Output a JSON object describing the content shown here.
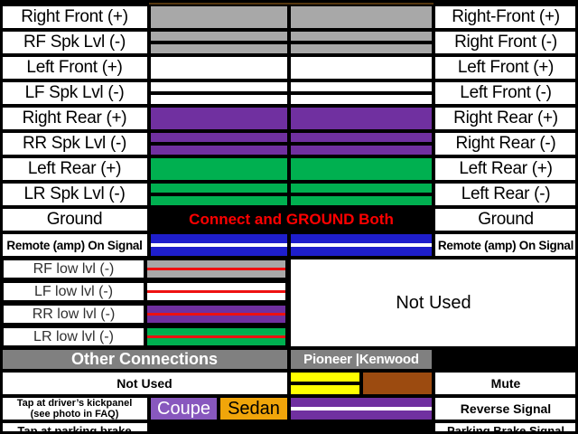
{
  "colors": {
    "wire_gray": "#A8A8A8",
    "header_gray": "#808080",
    "purple": "#7030A0",
    "green": "#00B050",
    "blue": "#1E1ECC",
    "yellow": "#FFFF00",
    "brown": "#9C4B10",
    "top_edge_brown": "#54360F",
    "light_green": "#92D050",
    "stripe_red": "#EE1111",
    "bottom_red": "#EE0000",
    "coupe_purple": "#8858BE",
    "sedan_orange": "#F0A50A",
    "ground_text_red": "#FF0000",
    "white": "#FFFFFF",
    "black": "#000000"
  },
  "wires": {
    "top_brown_sliver": [
      {
        "color": "#54360F",
        "weight": 1
      }
    ],
    "gray": [
      {
        "color": "#A8A8A8",
        "weight": 1
      }
    ],
    "gray_black": [
      {
        "color": "#A8A8A8",
        "weight": 2
      },
      {
        "color": "#000000",
        "weight": 1
      },
      {
        "color": "#A8A8A8",
        "weight": 2
      }
    ],
    "white": [
      {
        "color": "#FFFFFF",
        "weight": 1
      }
    ],
    "white_black": [
      {
        "color": "#FFFFFF",
        "weight": 2
      },
      {
        "color": "#000000",
        "weight": 1
      },
      {
        "color": "#FFFFFF",
        "weight": 2
      }
    ],
    "purple": [
      {
        "color": "#7030A0",
        "weight": 1
      }
    ],
    "purple_black": [
      {
        "color": "#7030A0",
        "weight": 2
      },
      {
        "color": "#000000",
        "weight": 1
      },
      {
        "color": "#7030A0",
        "weight": 2
      }
    ],
    "green": [
      {
        "color": "#00B050",
        "weight": 1
      }
    ],
    "green_black": [
      {
        "color": "#00B050",
        "weight": 2
      },
      {
        "color": "#000000",
        "weight": 1
      },
      {
        "color": "#00B050",
        "weight": 2
      }
    ],
    "blue_white": [
      {
        "color": "#1E1ECC",
        "weight": 2
      },
      {
        "color": "#FFFFFF",
        "weight": 1
      },
      {
        "color": "#1E1ECC",
        "weight": 2
      }
    ],
    "gray_red": [
      {
        "color": "#A8A8A8",
        "weight": 3
      },
      {
        "color": "#EE1111",
        "weight": 1
      },
      {
        "color": "#A8A8A8",
        "weight": 3
      }
    ],
    "white_red": [
      {
        "color": "#FFFFFF",
        "weight": 3
      },
      {
        "color": "#EE1111",
        "weight": 1
      },
      {
        "color": "#FFFFFF",
        "weight": 3
      }
    ],
    "purple_red": [
      {
        "color": "#7030A0",
        "weight": 3
      },
      {
        "color": "#EE1111",
        "weight": 1
      },
      {
        "color": "#7030A0",
        "weight": 3
      }
    ],
    "green_red": [
      {
        "color": "#00B050",
        "weight": 3
      },
      {
        "color": "#EE1111",
        "weight": 1
      },
      {
        "color": "#00B050",
        "weight": 3
      }
    ],
    "yellow_black": [
      {
        "color": "#FFFF00",
        "weight": 2
      },
      {
        "color": "#000000",
        "weight": 1
      },
      {
        "color": "#FFFF00",
        "weight": 2
      }
    ],
    "brown": [
      {
        "color": "#9C4B10",
        "weight": 1
      }
    ],
    "purple_white": [
      {
        "color": "#7030A0",
        "weight": 2
      },
      {
        "color": "#FFFFFF",
        "weight": 1
      },
      {
        "color": "#7030A0",
        "weight": 2
      }
    ],
    "light_green": [
      {
        "color": "#92D050",
        "weight": 1
      }
    ],
    "purple_over_red": [
      {
        "color": "#7030A0",
        "weight": 1
      },
      {
        "color": "#EE0000",
        "weight": 1
      }
    ]
  },
  "rows": [
    {
      "left": "Right Front (+)",
      "right": "Right-Front (+)"
    },
    {
      "left": "RF Spk Lvl (-)",
      "right": "Right Front (-)"
    },
    {
      "left": "Left Front (+)",
      "right": "Left Front (+)"
    },
    {
      "left": "LF Spk Lvl (-)",
      "right": "Left Front (-)"
    },
    {
      "left": "Right Rear (+)",
      "right": "Right Rear (+)"
    },
    {
      "left": "RR Spk Lvl (-)",
      "right": "Right Rear (-)"
    },
    {
      "left": "Left Rear (+)",
      "right": "Left Rear (+)"
    },
    {
      "left": "LR Spk Lvl (-)",
      "right": "Left Rear (-)"
    },
    {
      "left": "Ground",
      "right": "Ground",
      "note": "Connect and GROUND Both"
    },
    {
      "left": "Remote (amp) On Signal",
      "right": "Remote (amp) On Signal"
    }
  ],
  "low_rows": [
    {
      "left": "RF low lvl (-)"
    },
    {
      "left": "LF low lvl (-)"
    },
    {
      "left": "RR low lvl (-)"
    },
    {
      "left": "LR low lvl (-)"
    }
  ],
  "not_used_big": "Not Used",
  "header": {
    "left": "Other Connections",
    "middle": "Pioneer |Kenwood"
  },
  "mute_row": {
    "left": "Not Used",
    "right": "Mute"
  },
  "kickpanel_row": {
    "left_line1": "Tap at driver’s kickpanel",
    "left_line2": "(see photo in FAQ)",
    "coupe": "Coupe",
    "sedan": "Sedan",
    "right": "Reverse Signal"
  },
  "parking_row": {
    "left": "Tap at parking brake",
    "right": "Parking Brake Signal"
  }
}
